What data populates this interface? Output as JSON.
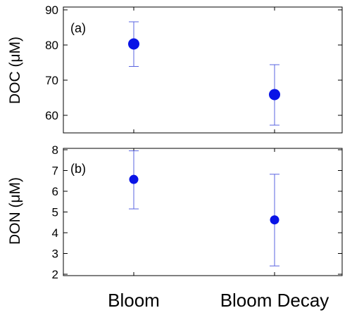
{
  "colors": {
    "marker": "#0a14e6",
    "errorbar": "#5a64e0",
    "bloom_label": "#1a8a8a",
    "decay_label": "#000000",
    "axis": "#000000"
  },
  "chart_data": [
    {
      "type": "scatter",
      "panel_label": "(a)",
      "ylabel": "DOC (μM)",
      "ylim": [
        55,
        90
      ],
      "yticks": [
        60,
        70,
        80,
        90
      ],
      "categories": [
        "Bloom",
        "Bloom Decay"
      ],
      "series": [
        {
          "values": [
            80.3,
            65.9
          ],
          "err_low": [
            73.9,
            57.2
          ],
          "err_high": [
            86.6,
            74.4
          ]
        }
      ],
      "grid": false
    },
    {
      "type": "scatter",
      "panel_label": "(b)",
      "ylabel": "DON (μM)",
      "ylim": [
        2,
        8
      ],
      "yticks": [
        2,
        3,
        4,
        5,
        6,
        7,
        8
      ],
      "categories": [
        "Bloom",
        "Bloom Decay"
      ],
      "series": [
        {
          "values": [
            6.57,
            4.62
          ],
          "err_low": [
            5.15,
            2.4
          ],
          "err_high": [
            7.95,
            6.82
          ]
        }
      ],
      "grid": false
    }
  ],
  "xaxis": {
    "labels": [
      "Bloom",
      "Bloom Decay"
    ]
  }
}
